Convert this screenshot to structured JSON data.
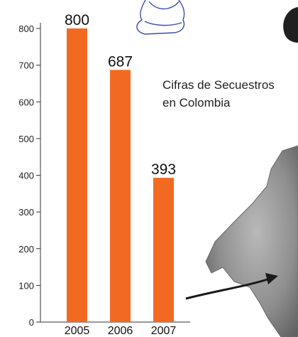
{
  "chart_data": {
    "type": "bar",
    "title": "Cifras de Secuestros en Colombia",
    "title_lines": [
      "Cifras de Secuestros",
      "en Colombia"
    ],
    "categories": [
      "2005",
      "2006",
      "2007"
    ],
    "values": [
      800,
      687,
      393
    ],
    "data_labels": [
      "800",
      "687",
      "393"
    ],
    "xlabel": "",
    "ylabel": "",
    "ylim": [
      0,
      800
    ],
    "yticks": [
      0,
      100,
      200,
      300,
      400,
      500,
      600,
      700,
      800
    ],
    "grid": false,
    "legend": "none",
    "bar_color": "#f26a22"
  },
  "decorations": {
    "map_color": "#8a8a8a",
    "arrow_color": "#1a1a1a",
    "illustration_stroke": "#3c4fa8"
  }
}
